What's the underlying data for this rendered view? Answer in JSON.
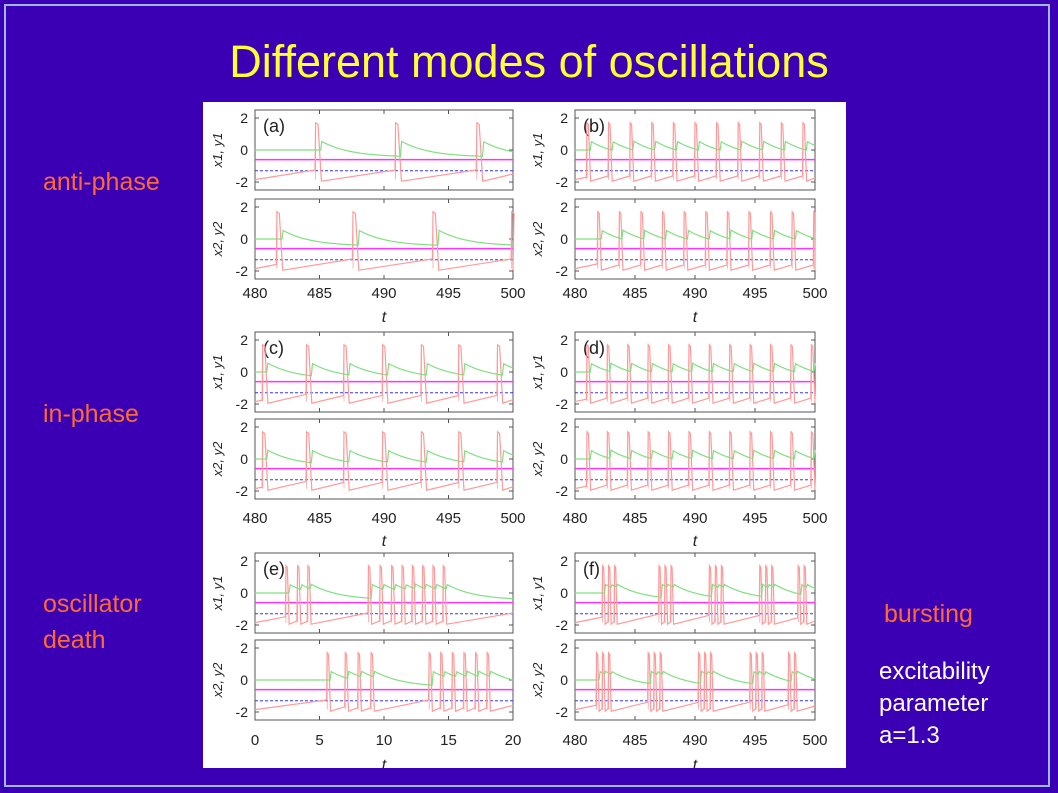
{
  "slide": {
    "title": "Different modes of oscillations",
    "labels": {
      "anti_phase": "anti-phase",
      "in_phase": "in-phase",
      "death_line1": "oscillator",
      "death_line2": "death",
      "bursting": "bursting",
      "note_line1": "excitability",
      "note_line2": "parameter",
      "note_line3": "a=1.3"
    }
  },
  "colors": {
    "background": "#3c00b4",
    "title": "#ffff33",
    "side_labels": "#ff6a33",
    "x_trace": "#ff9a9a",
    "y_trace": "#80e080",
    "threshold_line": "#ff33ff",
    "dashed_line": "#3333ff"
  },
  "chart_data": [
    {
      "type": "line",
      "panel": "(a)",
      "mode": "anti-phase",
      "xlabel": "t",
      "ylabel_top": "x1, y1",
      "ylabel_bottom": "x2, y2",
      "xlim": [
        480,
        500
      ],
      "ylim": [
        -2.5,
        2.5
      ],
      "xticks": [
        "480",
        "485",
        "490",
        "495",
        "500"
      ],
      "yticks": [
        "2",
        "0",
        "-2"
      ],
      "spikes_top": [
        484.7,
        490.9,
        497.2
      ],
      "spikes_bottom": [
        481.7,
        487.6,
        493.8,
        499.9
      ],
      "spike_width": 0.45,
      "magenta_level": -0.6,
      "dashed_level": -1.3
    },
    {
      "type": "line",
      "panel": "(b)",
      "mode": "anti-phase",
      "xlabel": "t",
      "ylabel_top": "x1, y1",
      "ylabel_bottom": "x2, y2",
      "xlim": [
        480,
        500
      ],
      "ylim": [
        -2.5,
        2.5
      ],
      "xticks": [
        "480",
        "485",
        "490",
        "495",
        "500"
      ],
      "yticks": [
        "2",
        "0",
        "-2"
      ],
      "spikes_top": [
        481.0,
        482.8,
        484.6,
        486.4,
        488.2,
        490.0,
        491.8,
        493.6,
        495.4,
        497.2,
        499.0
      ],
      "spikes_bottom": [
        481.9,
        483.7,
        485.5,
        487.3,
        489.1,
        490.9,
        492.7,
        494.5,
        496.3,
        498.1,
        499.9
      ],
      "spike_width": 0.3,
      "magenta_level": -0.6,
      "dashed_level": -1.3
    },
    {
      "type": "line",
      "panel": "(c)",
      "mode": "in-phase",
      "xlabel": "t",
      "ylabel_top": "x1, y1",
      "ylabel_bottom": "x2, y2",
      "xlim": [
        480,
        500
      ],
      "ylim": [
        -2.5,
        2.5
      ],
      "xticks": [
        "480",
        "485",
        "490",
        "495",
        "500"
      ],
      "yticks": [
        "2",
        "0",
        "-2"
      ],
      "spikes_top": [
        480.6,
        484.0,
        486.9,
        489.9,
        492.9,
        495.8,
        498.8
      ],
      "spikes_bottom": [
        480.6,
        484.0,
        486.9,
        489.9,
        492.9,
        495.8,
        498.8
      ],
      "spike_width": 0.4,
      "magenta_level": -0.6,
      "dashed_level": -1.3
    },
    {
      "type": "line",
      "panel": "(d)",
      "mode": "in-phase",
      "xlabel": "t",
      "ylabel_top": "x1, y1",
      "ylabel_bottom": "x2, y2",
      "xlim": [
        480,
        500
      ],
      "ylim": [
        -2.5,
        2.5
      ],
      "xticks": [
        "480",
        "485",
        "490",
        "495",
        "500"
      ],
      "yticks": [
        "2",
        "0",
        "-2"
      ],
      "spikes_top": [
        481.0,
        482.7,
        484.4,
        486.1,
        487.8,
        489.5,
        491.2,
        492.9,
        494.6,
        496.3,
        498.0,
        499.7
      ],
      "spikes_bottom": [
        481.0,
        482.7,
        484.4,
        486.1,
        487.8,
        489.5,
        491.2,
        492.9,
        494.6,
        496.3,
        498.0,
        499.7
      ],
      "spike_width": 0.3,
      "magenta_level": -0.6,
      "dashed_level": -1.3
    },
    {
      "type": "line",
      "panel": "(e)",
      "mode": "oscillator death",
      "xlabel": "t",
      "ylabel_top": "x1, y1",
      "ylabel_bottom": "x2, y2",
      "xlim": [
        0,
        20
      ],
      "ylim": [
        -2.5,
        2.5
      ],
      "xticks": [
        "0",
        "5",
        "10",
        "15",
        "20"
      ],
      "yticks": [
        "2",
        "0",
        "-2"
      ],
      "spikes_top": [
        2.4,
        3.3,
        4.1,
        8.8,
        9.7,
        10.6,
        11.4,
        12.2,
        13.0,
        13.8,
        14.6
      ],
      "spikes_bottom": [
        5.6,
        7.0,
        8.0,
        9.0,
        13.5,
        14.4,
        15.3,
        16.2,
        17.1,
        18.0
      ],
      "spike_width": 0.25,
      "magenta_level": -0.6,
      "dashed_level": -1.3
    },
    {
      "type": "line",
      "panel": "(f)",
      "mode": "bursting",
      "xlabel": "t",
      "ylabel_top": "x1, y1",
      "ylabel_bottom": "x2, y2",
      "xlim": [
        480,
        500
      ],
      "ylim": [
        -2.5,
        2.5
      ],
      "xticks": [
        "480",
        "485",
        "490",
        "495",
        "500"
      ],
      "yticks": [
        "2",
        "0",
        "-2"
      ],
      "spikes_top": [
        482.3,
        482.8,
        483.3,
        487.0,
        487.5,
        488.0,
        491.2,
        491.7,
        492.2,
        495.4,
        495.9,
        496.4,
        498.6,
        499.1
      ],
      "spikes_bottom": [
        481.8,
        482.3,
        482.8,
        486.1,
        486.6,
        487.1,
        490.3,
        490.8,
        491.3,
        494.6,
        495.1,
        495.6,
        497.8,
        498.3
      ],
      "spike_width": 0.22,
      "magenta_level": -0.6,
      "dashed_level": -1.3
    }
  ]
}
